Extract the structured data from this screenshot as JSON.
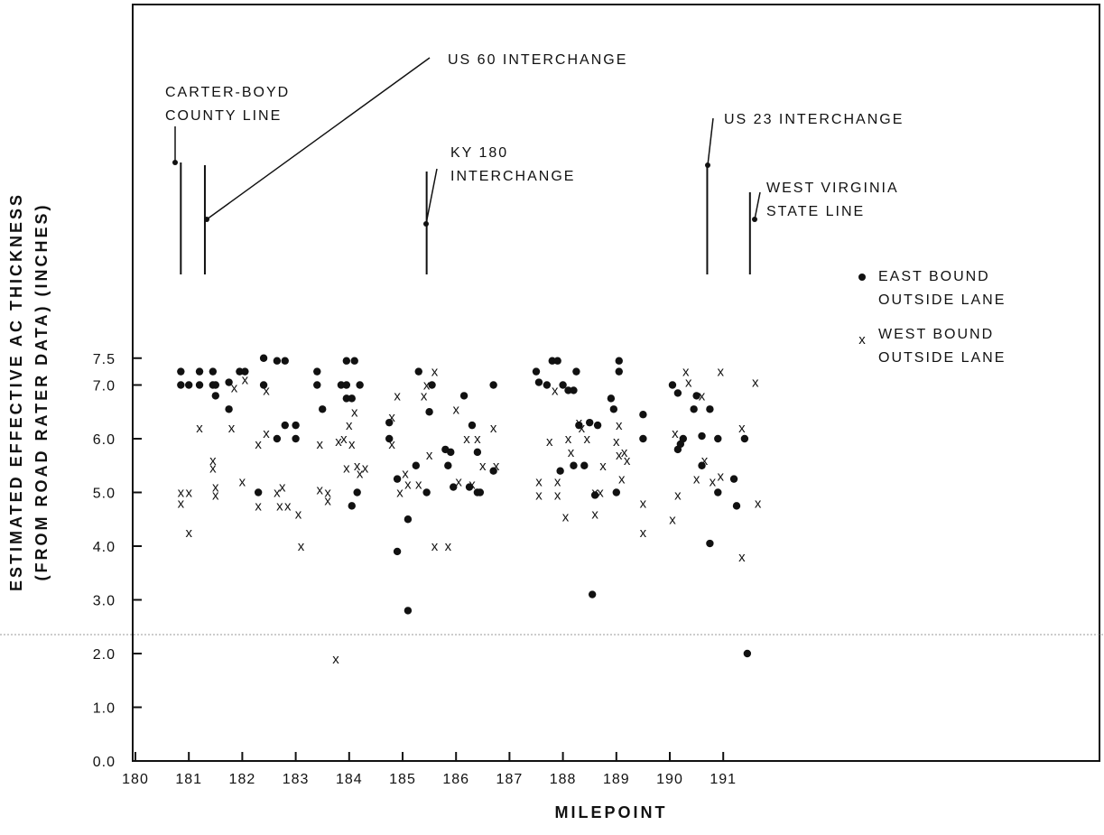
{
  "chart_data": {
    "type": "scatter",
    "xlabel": "MILEPOINT",
    "ylabel_line1": "ESTIMATED EFFECTIVE AC THICKNESS",
    "ylabel_line2": "(FROM ROAD RATER DATA) (INCHES)",
    "xlim": [
      180,
      195.7
    ],
    "ylim": [
      0,
      14
    ],
    "x_ticks": [
      180,
      181,
      182,
      183,
      184,
      185,
      186,
      187,
      188,
      189,
      190,
      191
    ],
    "x_tick_labels": [
      "180",
      "181",
      "182",
      "183",
      "184",
      "185",
      "186",
      "187",
      "188",
      "189",
      "190",
      "191"
    ],
    "y_ticks": [
      0,
      1,
      2,
      3,
      4,
      5,
      6,
      7,
      7.5
    ],
    "y_tick_labels": [
      "0.0",
      "1.0",
      "2.0",
      "3.0",
      "4.0",
      "5.0",
      "6.0",
      "7.0",
      "7.5"
    ],
    "grid": false,
    "legend_position": "right",
    "series": [
      {
        "name": "EAST BOUND OUTSIDE LANE",
        "marker": "dot",
        "points": [
          [
            180.85,
            7.25
          ],
          [
            180.85,
            7.0
          ],
          [
            181.0,
            7.0
          ],
          [
            181.2,
            7.0
          ],
          [
            181.2,
            7.25
          ],
          [
            181.45,
            7.25
          ],
          [
            181.45,
            7.0
          ],
          [
            181.5,
            7.0
          ],
          [
            181.5,
            6.8
          ],
          [
            181.75,
            7.05
          ],
          [
            181.75,
            6.55
          ],
          [
            181.95,
            7.25
          ],
          [
            182.05,
            7.25
          ],
          [
            182.3,
            5.0
          ],
          [
            182.4,
            7.5
          ],
          [
            182.4,
            7.0
          ],
          [
            182.65,
            7.45
          ],
          [
            182.65,
            6.0
          ],
          [
            182.8,
            7.45
          ],
          [
            182.8,
            6.25
          ],
          [
            183.0,
            6.25
          ],
          [
            183.0,
            6.0
          ],
          [
            183.4,
            7.25
          ],
          [
            183.4,
            7.0
          ],
          [
            183.5,
            6.55
          ],
          [
            183.85,
            7.0
          ],
          [
            183.95,
            7.45
          ],
          [
            183.95,
            7.0
          ],
          [
            183.95,
            6.75
          ],
          [
            184.05,
            6.75
          ],
          [
            184.05,
            4.75
          ],
          [
            184.1,
            7.45
          ],
          [
            184.15,
            5.0
          ],
          [
            184.2,
            7.0
          ],
          [
            184.75,
            6.3
          ],
          [
            184.75,
            6.0
          ],
          [
            184.9,
            5.25
          ],
          [
            184.9,
            3.9
          ],
          [
            185.1,
            4.5
          ],
          [
            185.1,
            2.8
          ],
          [
            185.25,
            5.5
          ],
          [
            185.3,
            7.25
          ],
          [
            185.45,
            5.0
          ],
          [
            185.5,
            6.5
          ],
          [
            185.55,
            7.0
          ],
          [
            185.8,
            5.8
          ],
          [
            185.85,
            5.5
          ],
          [
            185.9,
            5.75
          ],
          [
            185.95,
            5.1
          ],
          [
            186.15,
            6.8
          ],
          [
            186.25,
            5.1
          ],
          [
            186.3,
            6.25
          ],
          [
            186.4,
            5.0
          ],
          [
            186.4,
            5.75
          ],
          [
            186.45,
            5.0
          ],
          [
            186.7,
            7.0
          ],
          [
            186.7,
            5.4
          ],
          [
            187.5,
            7.25
          ],
          [
            187.55,
            7.05
          ],
          [
            187.7,
            7.0
          ],
          [
            187.8,
            7.45
          ],
          [
            187.9,
            7.45
          ],
          [
            187.95,
            5.4
          ],
          [
            188.0,
            7.0
          ],
          [
            188.1,
            6.9
          ],
          [
            188.2,
            6.9
          ],
          [
            188.2,
            5.5
          ],
          [
            188.25,
            7.25
          ],
          [
            188.3,
            6.25
          ],
          [
            188.4,
            5.5
          ],
          [
            188.5,
            6.3
          ],
          [
            188.55,
            3.1
          ],
          [
            188.6,
            4.95
          ],
          [
            188.65,
            6.25
          ],
          [
            188.9,
            6.75
          ],
          [
            188.95,
            6.55
          ],
          [
            189.0,
            5.0
          ],
          [
            189.05,
            7.45
          ],
          [
            189.05,
            7.25
          ],
          [
            189.5,
            6.45
          ],
          [
            189.5,
            6.0
          ],
          [
            190.05,
            7.0
          ],
          [
            190.15,
            5.8
          ],
          [
            190.15,
            6.85
          ],
          [
            190.2,
            5.9
          ],
          [
            190.25,
            6.0
          ],
          [
            190.45,
            6.55
          ],
          [
            190.5,
            6.8
          ],
          [
            190.6,
            6.05
          ],
          [
            190.6,
            5.5
          ],
          [
            190.75,
            6.55
          ],
          [
            190.75,
            4.05
          ],
          [
            190.9,
            6.0
          ],
          [
            190.9,
            5.0
          ],
          [
            191.2,
            5.25
          ],
          [
            191.25,
            4.75
          ],
          [
            191.4,
            6.0
          ],
          [
            191.45,
            2.0
          ]
        ]
      },
      {
        "name": "WEST BOUND OUTSIDE LANE",
        "marker": "x",
        "points": [
          [
            180.85,
            5.0
          ],
          [
            180.85,
            4.8
          ],
          [
            181.0,
            4.25
          ],
          [
            181.0,
            5.0
          ],
          [
            181.2,
            6.2
          ],
          [
            181.45,
            5.6
          ],
          [
            181.45,
            5.45
          ],
          [
            181.5,
            5.1
          ],
          [
            181.5,
            4.95
          ],
          [
            181.8,
            6.2
          ],
          [
            181.85,
            6.95
          ],
          [
            182.0,
            5.2
          ],
          [
            182.05,
            7.1
          ],
          [
            182.3,
            5.9
          ],
          [
            182.3,
            4.75
          ],
          [
            182.45,
            6.9
          ],
          [
            182.45,
            6.1
          ],
          [
            182.65,
            5.0
          ],
          [
            182.7,
            4.75
          ],
          [
            182.75,
            5.1
          ],
          [
            182.85,
            4.75
          ],
          [
            183.05,
            4.6
          ],
          [
            183.1,
            4.0
          ],
          [
            183.45,
            5.9
          ],
          [
            183.45,
            5.05
          ],
          [
            183.6,
            5.0
          ],
          [
            183.6,
            4.85
          ],
          [
            183.75,
            1.9
          ],
          [
            183.8,
            5.95
          ],
          [
            183.9,
            6.0
          ],
          [
            183.95,
            5.45
          ],
          [
            184.0,
            6.25
          ],
          [
            184.05,
            5.9
          ],
          [
            184.1,
            6.5
          ],
          [
            184.15,
            5.5
          ],
          [
            184.2,
            5.35
          ],
          [
            184.3,
            5.45
          ],
          [
            184.8,
            6.4
          ],
          [
            184.8,
            5.9
          ],
          [
            184.9,
            6.8
          ],
          [
            184.95,
            5.0
          ],
          [
            185.05,
            5.35
          ],
          [
            185.1,
            5.15
          ],
          [
            185.3,
            5.15
          ],
          [
            185.4,
            6.8
          ],
          [
            185.45,
            7.0
          ],
          [
            185.5,
            5.7
          ],
          [
            185.6,
            7.25
          ],
          [
            185.6,
            4.0
          ],
          [
            185.85,
            4.0
          ],
          [
            186.0,
            6.55
          ],
          [
            186.05,
            5.2
          ],
          [
            186.2,
            6.0
          ],
          [
            186.3,
            5.15
          ],
          [
            186.4,
            6.0
          ],
          [
            186.5,
            5.5
          ],
          [
            186.7,
            6.2
          ],
          [
            186.75,
            5.5
          ],
          [
            187.55,
            5.2
          ],
          [
            187.55,
            4.95
          ],
          [
            187.75,
            5.95
          ],
          [
            187.85,
            6.9
          ],
          [
            187.9,
            5.2
          ],
          [
            187.9,
            4.95
          ],
          [
            188.05,
            4.55
          ],
          [
            188.1,
            6.0
          ],
          [
            188.15,
            5.75
          ],
          [
            188.3,
            6.3
          ],
          [
            188.35,
            6.2
          ],
          [
            188.45,
            6.0
          ],
          [
            188.6,
            5.0
          ],
          [
            188.6,
            4.6
          ],
          [
            188.7,
            5.0
          ],
          [
            188.75,
            5.5
          ],
          [
            189.0,
            5.95
          ],
          [
            189.05,
            5.7
          ],
          [
            189.05,
            6.25
          ],
          [
            189.1,
            5.25
          ],
          [
            189.15,
            5.75
          ],
          [
            189.2,
            5.6
          ],
          [
            189.5,
            4.8
          ],
          [
            189.5,
            4.25
          ],
          [
            190.05,
            4.5
          ],
          [
            190.1,
            6.1
          ],
          [
            190.15,
            4.95
          ],
          [
            190.3,
            7.25
          ],
          [
            190.35,
            7.05
          ],
          [
            190.5,
            5.25
          ],
          [
            190.6,
            6.8
          ],
          [
            190.65,
            5.6
          ],
          [
            190.8,
            5.2
          ],
          [
            190.95,
            7.25
          ],
          [
            190.95,
            5.3
          ],
          [
            191.35,
            6.2
          ],
          [
            191.35,
            3.8
          ],
          [
            191.6,
            7.05
          ],
          [
            191.65,
            4.8
          ]
        ]
      }
    ],
    "markers": [
      {
        "x": 180.85,
        "label_lines": [
          "CARTER-BOYD",
          "COUNTY LINE"
        ]
      },
      {
        "x": 181.3,
        "label_lines": [
          "US 60 INTERCHANGE"
        ]
      },
      {
        "x": 185.45,
        "label_lines": [
          "KY 180",
          "INTERCHANGE"
        ]
      },
      {
        "x": 190.7,
        "label_lines": [
          "US 23 INTERCHANGE"
        ]
      },
      {
        "x": 191.5,
        "label_lines": [
          "WEST VIRGINIA",
          "STATE LINE"
        ]
      }
    ]
  }
}
